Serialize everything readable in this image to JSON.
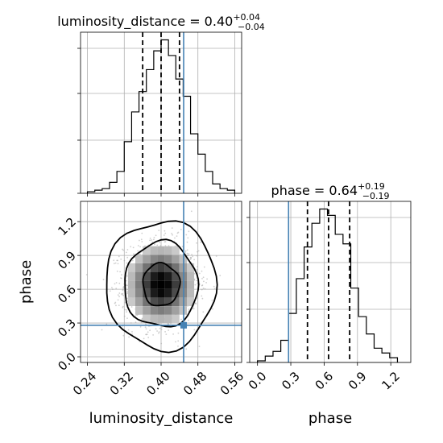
{
  "chart_data": {
    "type": "corner",
    "parameters": [
      "luminosity_distance",
      "phase"
    ],
    "truth_color": "#4682b4",
    "truth_values": {
      "luminosity_distance": 0.449,
      "phase": 0.28
    },
    "panels": [
      {
        "id": "hist-luminosity-distance",
        "type": "histogram",
        "parameter": "luminosity_distance",
        "title": "luminosity_distance = 0.40",
        "title_sup": "+0.04",
        "title_sub": "−0.04",
        "bins": [
          0.24,
          0.256,
          0.272,
          0.288,
          0.304,
          0.32,
          0.336,
          0.352,
          0.368,
          0.384,
          0.4,
          0.416,
          0.432,
          0.448,
          0.464,
          0.48,
          0.496,
          0.512,
          0.528,
          0.544,
          0.56
        ],
        "counts": [
          1,
          2,
          3,
          7,
          14,
          33,
          52,
          65,
          79,
          91,
          98,
          88,
          73,
          62,
          38,
          25,
          14,
          6,
          3,
          2
        ],
        "quantiles": [
          0.36,
          0.4,
          0.44
        ],
        "truth": 0.449,
        "xlim": [
          0.225,
          0.575
        ],
        "grid": true
      },
      {
        "id": "hist-phase",
        "type": "histogram",
        "parameter": "phase",
        "title": "phase = 0.64",
        "title_sup": "+0.19",
        "title_sub": "−0.19",
        "bins": [
          0.0,
          0.07,
          0.14,
          0.21,
          0.28,
          0.35,
          0.42,
          0.49,
          0.56,
          0.63,
          0.7,
          0.77,
          0.84,
          0.91,
          0.98,
          1.05,
          1.12,
          1.19,
          1.26
        ],
        "counts": [
          1,
          4,
          7,
          14,
          31,
          53,
          73,
          88,
          97,
          93,
          81,
          75,
          47,
          29,
          18,
          9,
          6,
          3
        ],
        "quantiles": [
          0.45,
          0.64,
          0.83
        ],
        "truth": 0.28,
        "xlim": [
          -0.07,
          1.38
        ],
        "grid": true
      },
      {
        "id": "joint-luminosity-distance-phase",
        "type": "2d-density",
        "x_parameter": "luminosity_distance",
        "y_parameter": "phase",
        "center": [
          0.4,
          0.64
        ],
        "sigma": [
          0.04,
          0.19
        ],
        "contour_levels_sigma": [
          1.0,
          2.0,
          3.0
        ],
        "xlim": [
          0.225,
          0.575
        ],
        "ylim": [
          -0.05,
          1.38
        ],
        "truth": [
          0.449,
          0.28
        ],
        "grid": true
      }
    ],
    "axes": {
      "luminosity_distance": {
        "label": "luminosity_distance",
        "ticks": [
          0.24,
          0.32,
          0.4,
          0.48,
          0.56
        ],
        "tick_labels": [
          "0.24",
          "0.32",
          "0.40",
          "0.48",
          "0.56"
        ]
      },
      "phase_y": {
        "label": "phase",
        "ticks": [
          0.0,
          0.3,
          0.6,
          0.9,
          1.2
        ],
        "tick_labels": [
          "0.0",
          "0.3",
          "0.6",
          "0.9",
          "1.2"
        ]
      },
      "phase_x": {
        "label": "phase",
        "ticks": [
          0.0,
          0.3,
          0.6,
          0.9,
          1.2
        ],
        "tick_labels": [
          "0.0",
          "0.3",
          "0.6",
          "0.9",
          "1.2"
        ]
      }
    }
  }
}
